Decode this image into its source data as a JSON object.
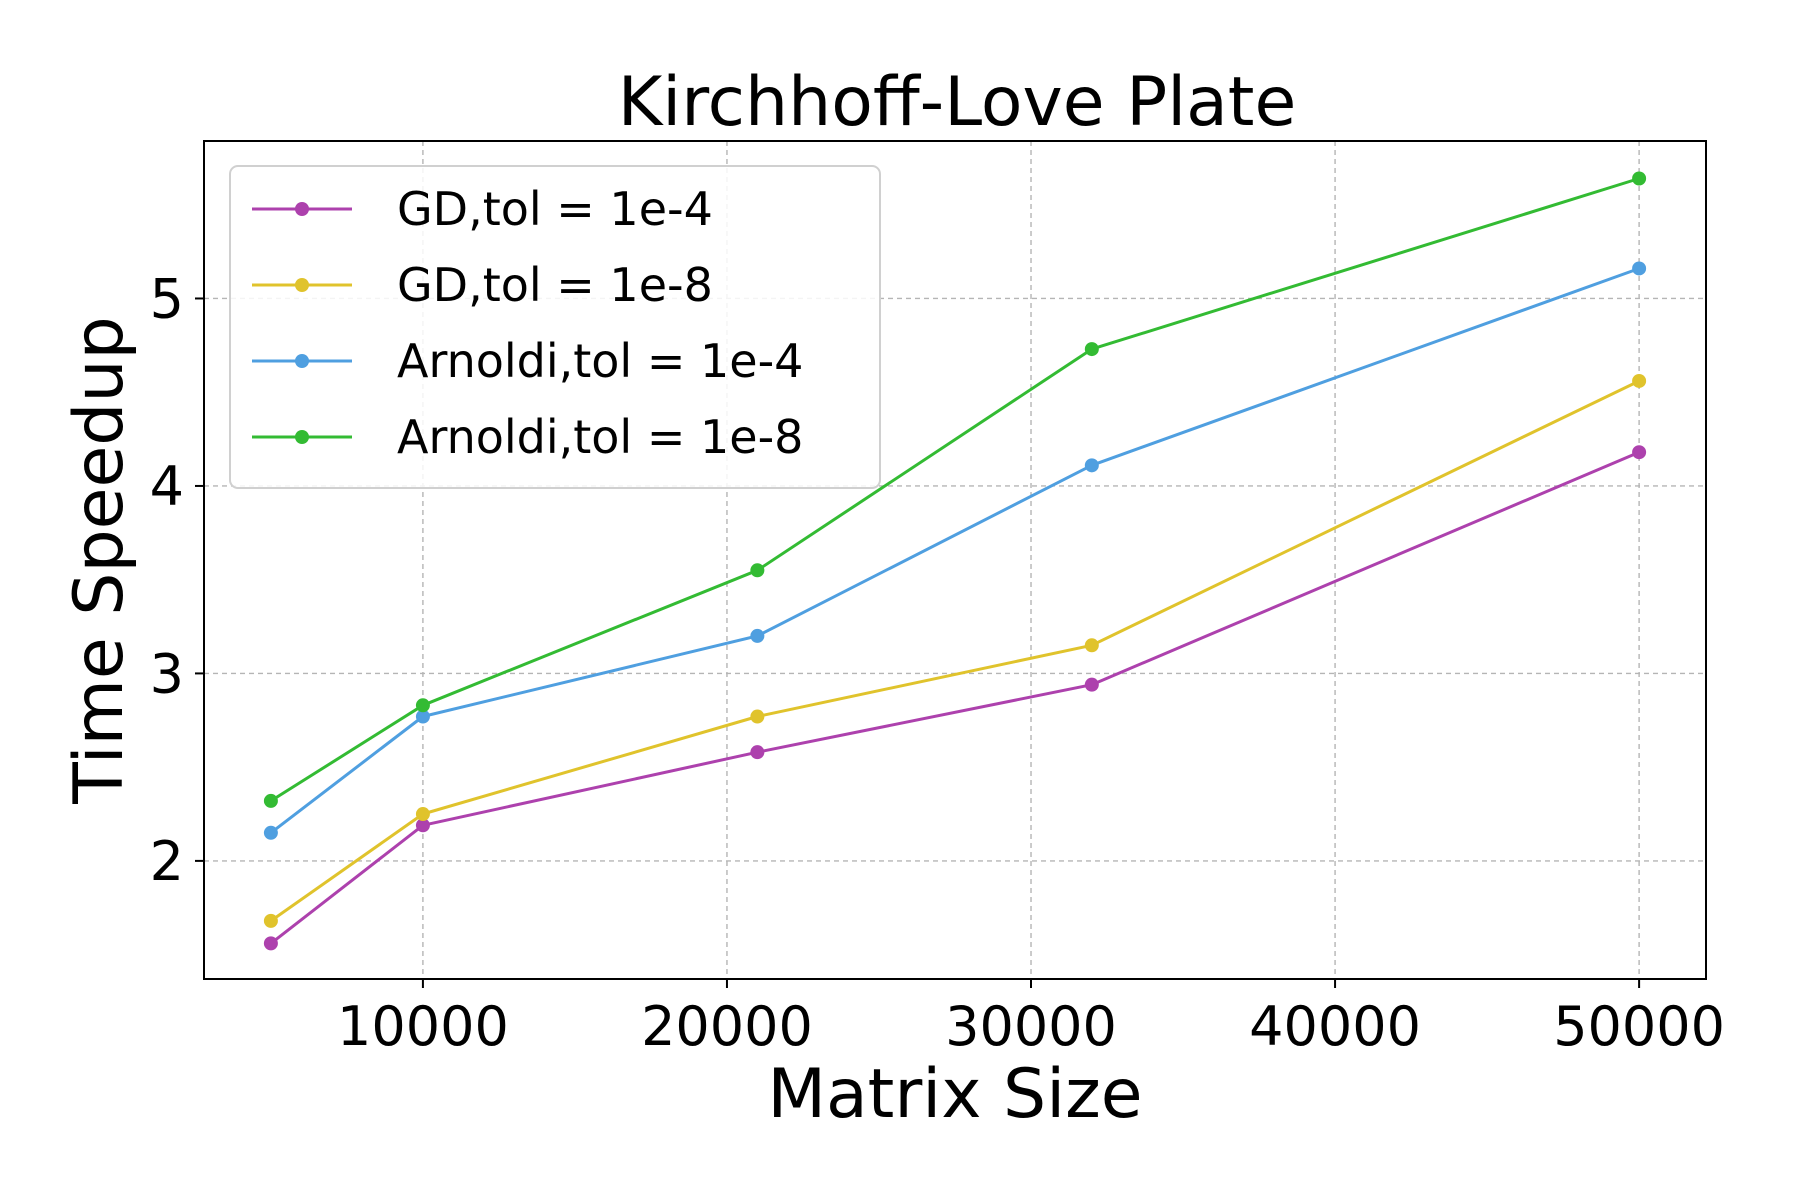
{
  "chart_data": {
    "type": "line",
    "title": "Kirchhoff-Love Plate",
    "xlabel": "Matrix Size",
    "ylabel": "Time Speedup",
    "x": [
      5000,
      10000,
      21000,
      32000,
      50000
    ],
    "xlim": [
      2800,
      52200
    ],
    "ylim": [
      1.37,
      5.84
    ],
    "xticks": [
      10000,
      20000,
      30000,
      40000,
      50000
    ],
    "yticks": [
      2,
      3,
      4,
      5
    ],
    "grid": true,
    "legend_position": "top-left",
    "series": [
      {
        "name": "GD,tol = 1e-4",
        "color": "#ad41ad",
        "values": [
          1.56,
          2.19,
          2.58,
          2.94,
          4.18
        ]
      },
      {
        "name": "GD,tol = 1e-8",
        "color": "#e0c32c",
        "values": [
          1.68,
          2.25,
          2.77,
          3.15,
          4.56
        ]
      },
      {
        "name": "Arnoldi,tol = 1e-4",
        "color": "#4f9fe0",
        "values": [
          2.15,
          2.77,
          3.2,
          4.11,
          5.16
        ]
      },
      {
        "name": "Arnoldi,tol = 1e-8",
        "color": "#33bb33",
        "values": [
          2.32,
          2.83,
          3.55,
          4.73,
          5.64
        ]
      }
    ]
  }
}
